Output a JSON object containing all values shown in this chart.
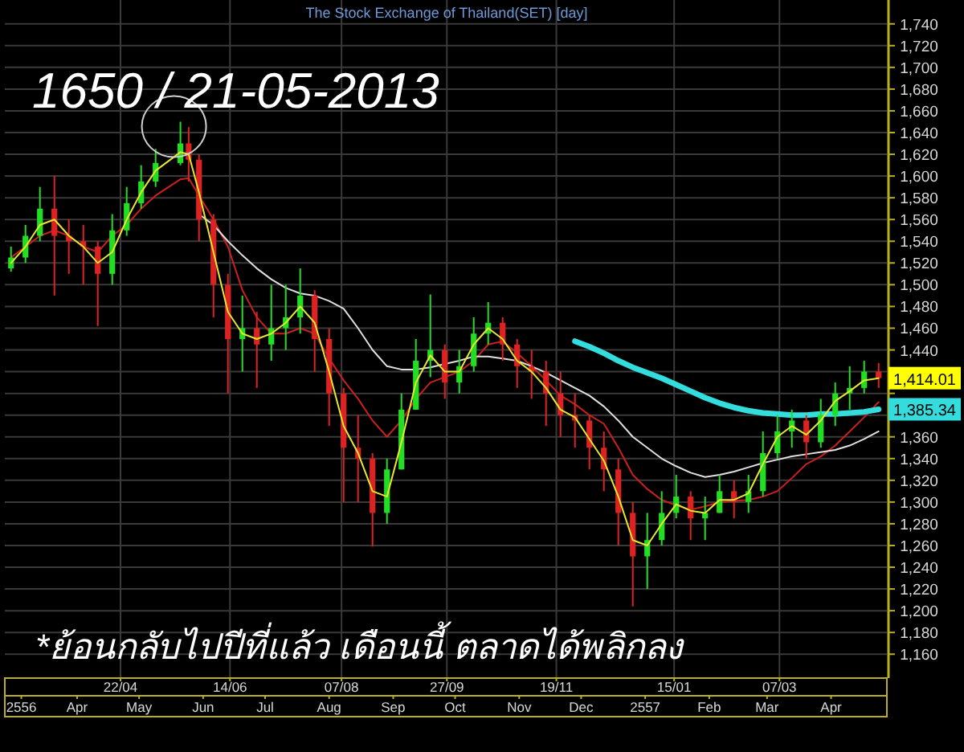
{
  "chart_data": {
    "type": "candlestick",
    "title": "The Stock Exchange of Thailand(SET) [day]",
    "x": [
      "2013-02-28",
      "2013-03-07",
      "2013-03-14",
      "2013-03-21",
      "2013-03-28",
      "2013-04-04",
      "2013-04-11",
      "2013-04-18",
      "2013-04-25",
      "2013-05-02",
      "2013-05-09",
      "2013-05-21",
      "2013-05-25",
      "2013-05-30",
      "2013-06-06",
      "2013-06-13",
      "2013-06-20",
      "2013-06-27",
      "2013-07-04",
      "2013-07-11",
      "2013-07-18",
      "2013-07-25",
      "2013-08-01",
      "2013-08-08",
      "2013-08-15",
      "2013-08-22",
      "2013-08-29",
      "2013-09-05",
      "2013-09-12",
      "2013-09-19",
      "2013-09-26",
      "2013-10-03",
      "2013-10-10",
      "2013-10-17",
      "2013-10-24",
      "2013-10-31",
      "2013-11-07",
      "2013-11-14",
      "2013-11-21",
      "2013-11-28",
      "2013-12-05",
      "2013-12-12",
      "2013-12-19",
      "2013-12-26",
      "2014-01-02",
      "2014-01-09",
      "2014-01-16",
      "2014-01-23",
      "2014-01-30",
      "2014-02-06",
      "2014-02-13",
      "2014-02-20",
      "2014-02-27",
      "2014-03-06",
      "2014-03-13",
      "2014-03-20",
      "2014-03-27",
      "2014-04-03",
      "2014-04-10",
      "2014-04-17",
      "2014-04-24"
    ],
    "ohlc": [
      [
        1515,
        1535,
        1512,
        1525
      ],
      [
        1525,
        1555,
        1520,
        1545
      ],
      [
        1545,
        1590,
        1540,
        1570
      ],
      [
        1570,
        1600,
        1490,
        1545
      ],
      [
        1545,
        1560,
        1510,
        1540
      ],
      [
        1540,
        1555,
        1500,
        1535
      ],
      [
        1535,
        1540,
        1462,
        1510
      ],
      [
        1510,
        1565,
        1500,
        1550
      ],
      [
        1550,
        1590,
        1545,
        1575
      ],
      [
        1575,
        1610,
        1570,
        1595
      ],
      [
        1595,
        1625,
        1590,
        1612
      ],
      [
        1612,
        1650,
        1610,
        1630
      ],
      [
        1630,
        1645,
        1595,
        1615
      ],
      [
        1615,
        1620,
        1540,
        1560
      ],
      [
        1560,
        1565,
        1470,
        1500
      ],
      [
        1500,
        1510,
        1400,
        1450
      ],
      [
        1450,
        1490,
        1420,
        1460
      ],
      [
        1460,
        1475,
        1405,
        1445
      ],
      [
        1445,
        1500,
        1430,
        1460
      ],
      [
        1460,
        1500,
        1440,
        1470
      ],
      [
        1470,
        1515,
        1455,
        1490
      ],
      [
        1490,
        1495,
        1420,
        1450
      ],
      [
        1450,
        1460,
        1370,
        1400
      ],
      [
        1400,
        1405,
        1300,
        1350
      ],
      [
        1350,
        1380,
        1300,
        1340
      ],
      [
        1340,
        1345,
        1259,
        1290
      ],
      [
        1290,
        1340,
        1280,
        1330
      ],
      [
        1330,
        1400,
        1330,
        1385
      ],
      [
        1385,
        1450,
        1385,
        1430
      ],
      [
        1430,
        1491,
        1415,
        1440
      ],
      [
        1440,
        1445,
        1395,
        1410
      ],
      [
        1410,
        1440,
        1400,
        1425
      ],
      [
        1425,
        1470,
        1420,
        1455
      ],
      [
        1455,
        1484,
        1445,
        1465
      ],
      [
        1465,
        1470,
        1430,
        1445
      ],
      [
        1445,
        1450,
        1405,
        1425
      ],
      [
        1425,
        1440,
        1395,
        1420
      ],
      [
        1420,
        1430,
        1370,
        1400
      ],
      [
        1400,
        1420,
        1360,
        1380
      ],
      [
        1380,
        1400,
        1350,
        1375
      ],
      [
        1375,
        1380,
        1330,
        1350
      ],
      [
        1350,
        1365,
        1310,
        1330
      ],
      [
        1330,
        1340,
        1260,
        1290
      ],
      [
        1290,
        1300,
        1204,
        1250
      ],
      [
        1250,
        1290,
        1220,
        1265
      ],
      [
        1265,
        1310,
        1260,
        1290
      ],
      [
        1290,
        1325,
        1285,
        1305
      ],
      [
        1305,
        1310,
        1265,
        1285
      ],
      [
        1285,
        1305,
        1265,
        1290
      ],
      [
        1290,
        1325,
        1290,
        1310
      ],
      [
        1310,
        1320,
        1285,
        1300
      ],
      [
        1300,
        1325,
        1290,
        1310
      ],
      [
        1310,
        1365,
        1305,
        1345
      ],
      [
        1345,
        1380,
        1340,
        1365
      ],
      [
        1365,
        1385,
        1350,
        1375
      ],
      [
        1375,
        1380,
        1340,
        1355
      ],
      [
        1355,
        1395,
        1350,
        1380
      ],
      [
        1380,
        1410,
        1370,
        1400
      ],
      [
        1400,
        1425,
        1385,
        1405
      ],
      [
        1405,
        1430,
        1400,
        1420
      ],
      [
        1420,
        1428,
        1405,
        1414.01
      ]
    ],
    "colors": [
      "#22dd22",
      "#22dd22",
      "#22dd22",
      "#dd2222",
      "#dd2222",
      "#dd2222",
      "#dd2222",
      "#22dd22",
      "#22dd22",
      "#22dd22",
      "#22dd22",
      "#22dd22",
      "#dd2222",
      "#dd2222",
      "#dd2222",
      "#dd2222",
      "#22dd22",
      "#dd2222",
      "#22dd22",
      "#22dd22",
      "#22dd22",
      "#dd2222",
      "#dd2222",
      "#dd2222",
      "#dd2222",
      "#dd2222",
      "#22dd22",
      "#22dd22",
      "#22dd22",
      "#22dd22",
      "#dd2222",
      "#22dd22",
      "#22dd22",
      "#22dd22",
      "#dd2222",
      "#dd2222",
      "#dd2222",
      "#dd2222",
      "#dd2222",
      "#dd2222",
      "#dd2222",
      "#dd2222",
      "#dd2222",
      "#dd2222",
      "#22dd22",
      "#22dd22",
      "#22dd22",
      "#dd2222",
      "#22dd22",
      "#22dd22",
      "#dd2222",
      "#22dd22",
      "#22dd22",
      "#22dd22",
      "#22dd22",
      "#dd2222",
      "#22dd22",
      "#22dd22",
      "#22dd22",
      "#22dd22",
      "#dd2222"
    ],
    "series": [
      {
        "type": "line",
        "color": "#e8e830",
        "values": [
          1520,
          1535,
          1555,
          1560,
          1545,
          1535,
          1520,
          1530,
          1560,
          1585,
          1605,
          1622,
          1620,
          1585,
          1530,
          1475,
          1455,
          1450,
          1455,
          1465,
          1480,
          1465,
          1420,
          1370,
          1345,
          1310,
          1305,
          1355,
          1410,
          1435,
          1420,
          1420,
          1445,
          1460,
          1450,
          1430,
          1420,
          1405,
          1385,
          1378,
          1358,
          1338,
          1305,
          1265,
          1260,
          1280,
          1298,
          1292,
          1290,
          1302,
          1302,
          1308,
          1335,
          1360,
          1370,
          1362,
          1375,
          1393,
          1402,
          1412,
          1414
        ]
      },
      {
        "type": "line",
        "color": "#cc2020",
        "values": [
          1525,
          1535,
          1545,
          1550,
          1545,
          1535,
          1530,
          1545,
          1555,
          1570,
          1582,
          1597,
          1598,
          1582,
          1560,
          1535,
          1495,
          1470,
          1455,
          1455,
          1460,
          1455,
          1432,
          1412,
          1395,
          1375,
          1360,
          1375,
          1395,
          1410,
          1415,
          1420,
          1430,
          1445,
          1448,
          1437,
          1425,
          1412,
          1398,
          1390,
          1380,
          1372,
          1350,
          1325,
          1312,
          1302,
          1297,
          1293,
          1296,
          1300,
          1301,
          1302,
          1305,
          1310,
          1322,
          1335,
          1342,
          1352,
          1365,
          1378,
          1392
        ]
      },
      {
        "type": "line",
        "color": "#e0e0e0",
        "values": [
          null,
          null,
          null,
          null,
          null,
          null,
          null,
          null,
          null,
          null,
          null,
          null,
          null,
          1565,
          1555,
          1540,
          1527,
          1515,
          1505,
          1497,
          1492,
          1490,
          1485,
          1478,
          1460,
          1440,
          1425,
          1422,
          1422,
          1424,
          1427,
          1430,
          1434,
          1434,
          1432,
          1430,
          1425,
          1419,
          1412,
          1405,
          1398,
          1388,
          1375,
          1360,
          1350,
          1340,
          1333,
          1327,
          1323,
          1325,
          1328,
          1332,
          1336,
          1339,
          1342,
          1344,
          1346,
          1348,
          1352,
          1358,
          1365
        ]
      },
      {
        "type": "line",
        "color": "#33dddd",
        "values": [
          null,
          null,
          null,
          null,
          null,
          null,
          null,
          null,
          null,
          null,
          null,
          null,
          null,
          null,
          null,
          null,
          null,
          null,
          null,
          null,
          null,
          null,
          null,
          null,
          null,
          null,
          null,
          null,
          null,
          null,
          null,
          null,
          null,
          null,
          null,
          null,
          null,
          null,
          null,
          1448,
          1443,
          1437,
          1430,
          1424,
          1419,
          1414,
          1408,
          1402,
          1396,
          1391,
          1387,
          1384,
          1382,
          1381,
          1380,
          1380,
          1381,
          1381,
          1382,
          1383,
          1385.34
        ]
      }
    ],
    "xlim": [
      "2013-02-25",
      "2014-04-28"
    ],
    "xticks": [
      {
        "value": "2013-03-05",
        "label": "2556"
      },
      {
        "value": "2013-04-01",
        "label": "Apr"
      },
      {
        "value": "2013-05-01",
        "label": "May"
      },
      {
        "value": "2013-06-01",
        "label": "Jun"
      },
      {
        "value": "2013-07-01",
        "label": "Jul"
      },
      {
        "value": "2013-08-01",
        "label": "Aug"
      },
      {
        "value": "2013-09-01",
        "label": "Sep"
      },
      {
        "value": "2013-10-01",
        "label": "Oct"
      },
      {
        "value": "2013-11-01",
        "label": "Nov"
      },
      {
        "value": "2013-12-01",
        "label": "Dec"
      },
      {
        "value": "2014-01-01",
        "label": "2557"
      },
      {
        "value": "2014-02-01",
        "label": "Feb"
      },
      {
        "value": "2014-03-01",
        "label": "Mar"
      },
      {
        "value": "2014-04-01",
        "label": "Apr"
      }
    ],
    "x2lim": [
      "2013-02-25",
      "2014-04-28"
    ],
    "x2ticks": [
      {
        "value": "2013-04-22",
        "label": "22/04"
      },
      {
        "value": "2013-06-14",
        "label": "14/06"
      },
      {
        "value": "2013-08-07",
        "label": "07/08"
      },
      {
        "value": "2013-09-27",
        "label": "27/09"
      },
      {
        "value": "2013-11-19",
        "label": "19/11"
      },
      {
        "value": "2014-01-15",
        "label": "15/01"
      },
      {
        "value": "2014-03-07",
        "label": "07/03"
      }
    ],
    "ylim": [
      1138,
      1762
    ],
    "yticks": [
      {
        "value": 1160,
        "label": "1,160"
      },
      {
        "value": 1180,
        "label": "1,180"
      },
      {
        "value": 1200,
        "label": "1,200"
      },
      {
        "value": 1220,
        "label": "1,220"
      },
      {
        "value": 1240,
        "label": "1,240"
      },
      {
        "value": 1260,
        "label": "1,260"
      },
      {
        "value": 1280,
        "label": "1,280"
      },
      {
        "value": 1300,
        "label": "1,300"
      },
      {
        "value": 1320,
        "label": "1,320"
      },
      {
        "value": 1340,
        "label": "1,340"
      },
      {
        "value": 1360,
        "label": "1,360"
      },
      {
        "value": 1380,
        "label": null
      },
      {
        "value": 1400,
        "label": null
      },
      {
        "value": 1420,
        "label": null
      },
      {
        "value": 1440,
        "label": "1,440"
      },
      {
        "value": 1460,
        "label": "1,460"
      },
      {
        "value": 1480,
        "label": "1,480"
      },
      {
        "value": 1500,
        "label": "1,500"
      },
      {
        "value": 1520,
        "label": "1,520"
      },
      {
        "value": 1540,
        "label": "1,540"
      },
      {
        "value": 1560,
        "label": "1,560"
      },
      {
        "value": 1580,
        "label": "1,580"
      },
      {
        "value": 1600,
        "label": "1,600"
      },
      {
        "value": 1620,
        "label": "1,620"
      },
      {
        "value": 1640,
        "label": "1,640"
      },
      {
        "value": 1660,
        "label": "1,660"
      },
      {
        "value": 1680,
        "label": "1,680"
      },
      {
        "value": 1700,
        "label": "1,700"
      },
      {
        "value": 1720,
        "label": "1,720"
      },
      {
        "value": 1740,
        "label": "1,740"
      }
    ],
    "grid": true,
    "annotations": [
      {
        "text": "1650 / 21-05-2013",
        "x": "2013-05-21",
        "y": 1650
      },
      {
        "text": "1,414.01",
        "x": "2014-04-24",
        "y": 1414.01
      },
      {
        "text": "1,385.34",
        "x": "2014-04-24",
        "y": 1385.34
      },
      "*ย้อนกลับไปปีที่แล้ว เดือนนี้ ตลาดได้พลิกลง"
    ]
  }
}
